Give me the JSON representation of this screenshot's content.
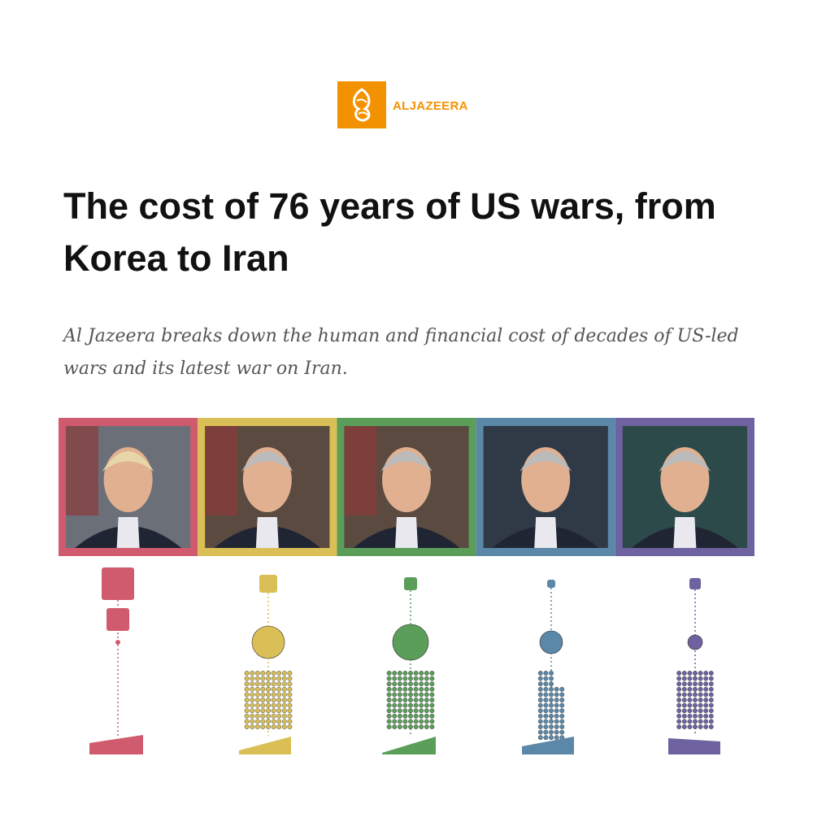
{
  "logo": {
    "text": "ALJAZEERA"
  },
  "headline": {
    "title": "The cost of 76 years of US wars, from Korea to Iran",
    "subtitle": "Al Jazeera breaks down the human and financial cost of decades of US-led wars and its latest war on Iran."
  }
}
